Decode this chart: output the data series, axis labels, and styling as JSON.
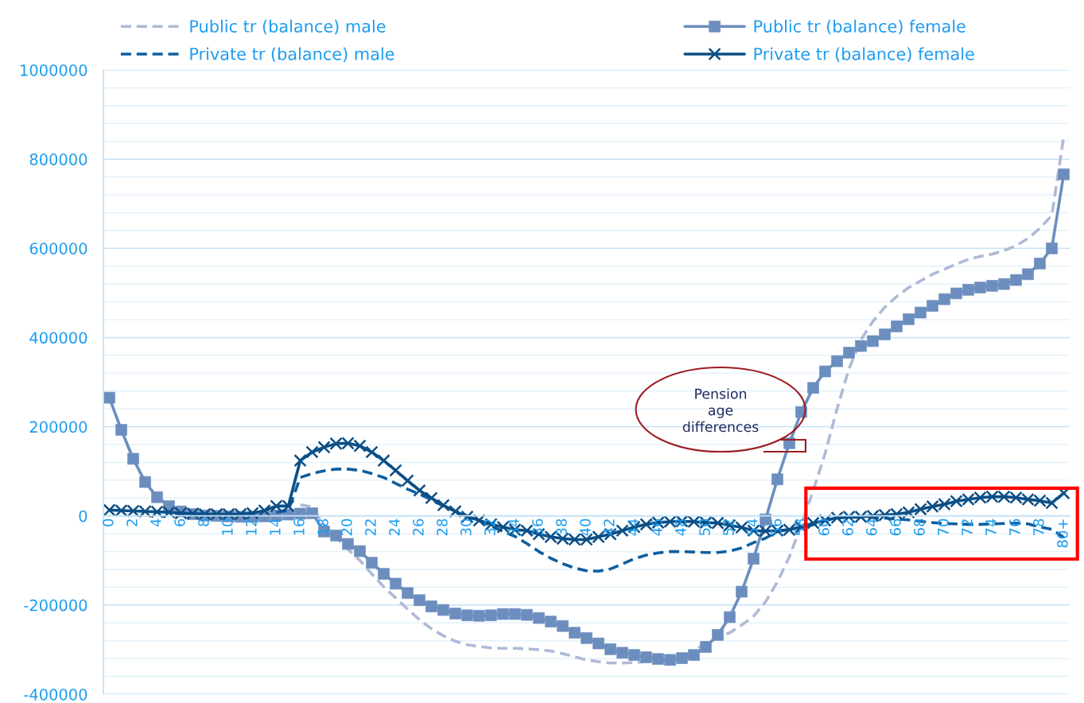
{
  "chart_data": {
    "type": "line",
    "categories": [
      "0",
      null,
      "2",
      null,
      "4",
      null,
      "6",
      null,
      "8",
      null,
      "10",
      null,
      "12",
      null,
      "14",
      null,
      "16",
      null,
      "18",
      null,
      "20",
      null,
      "22",
      null,
      "24",
      null,
      "26",
      null,
      "28",
      null,
      "30",
      null,
      "32",
      null,
      "34",
      null,
      "36",
      null,
      "38",
      null,
      "40",
      null,
      "42",
      null,
      "44",
      null,
      "46",
      null,
      "48",
      null,
      "50",
      null,
      "52",
      null,
      "54",
      null,
      "56",
      null,
      "58",
      null,
      "60",
      null,
      "62",
      null,
      "64",
      null,
      "66",
      null,
      "68",
      null,
      "70",
      null,
      "72",
      null,
      "74",
      null,
      "76",
      null,
      "78",
      null,
      "80+"
    ],
    "series": [
      {
        "name": "Public tr (balance) male",
        "color": "#aebad6",
        "marker": "none",
        "line_style": "dashed",
        "values": [
          null,
          null,
          null,
          null,
          null,
          null,
          null,
          null,
          null,
          null,
          null,
          null,
          null,
          null,
          null,
          null,
          25000,
          20000,
          -20000,
          -48000,
          -75000,
          -100000,
          -130000,
          -159000,
          -184000,
          -209000,
          -233000,
          -253000,
          -269000,
          -281000,
          -289000,
          -293000,
          -296000,
          -297000,
          -297000,
          -298000,
          -300000,
          -303000,
          -309000,
          -316000,
          -323000,
          -327000,
          -330000,
          -330000,
          -329000,
          -327000,
          -325000,
          -322000,
          -316000,
          -303000,
          -285000,
          -273000,
          -262000,
          -245000,
          -225000,
          -193000,
          -148000,
          -92000,
          -20000,
          57000,
          140000,
          240000,
          330000,
          395000,
          436000,
          468000,
          492000,
          512000,
          527000,
          542000,
          553000,
          565000,
          575000,
          582000,
          587000,
          595000,
          606000,
          622000,
          645000,
          674000,
          850000
        ]
      },
      {
        "name": "Public tr (balance) female",
        "color": "#6c8ebf",
        "marker": "square",
        "line_style": "solid",
        "values": [
          265000,
          193000,
          128000,
          76000,
          42000,
          22000,
          10000,
          4000,
          1000,
          0,
          -1000,
          -2000,
          -2000,
          -1000,
          1000,
          3000,
          5000,
          6000,
          -35000,
          -44000,
          -63000,
          -79000,
          -105000,
          -130000,
          -152000,
          -173000,
          -189000,
          -203000,
          -211000,
          -219000,
          -223000,
          -224000,
          -223000,
          -220000,
          -220000,
          -222000,
          -229000,
          -237000,
          -247000,
          -262000,
          -274000,
          -286000,
          -299000,
          -307000,
          -312000,
          -317000,
          -321000,
          -323000,
          -319000,
          -312000,
          -294000,
          -267000,
          -227000,
          -170000,
          -96000,
          -8000,
          82000,
          163000,
          233000,
          287000,
          324000,
          347000,
          366000,
          381000,
          392000,
          407000,
          425000,
          441000,
          456000,
          471000,
          486000,
          499000,
          507000,
          512000,
          516000,
          520000,
          529000,
          542000,
          566000,
          600000,
          766000
        ]
      },
      {
        "name": "Private tr (balance) male",
        "color": "#0e5e9e",
        "marker": "none",
        "line_style": "dashed",
        "values": [
          null,
          null,
          null,
          null,
          null,
          null,
          null,
          null,
          null,
          null,
          null,
          null,
          null,
          null,
          8000,
          12000,
          86000,
          95000,
          101000,
          105000,
          105000,
          102000,
          95000,
          86000,
          73000,
          60000,
          49000,
          36000,
          22000,
          11000,
          0,
          -11000,
          -22000,
          -35000,
          -46000,
          -62000,
          -80000,
          -95000,
          -107000,
          -117000,
          -123000,
          -124000,
          -119000,
          -108000,
          -96000,
          -88000,
          -83000,
          -80000,
          -80000,
          -81000,
          -82000,
          -82000,
          -79000,
          -72000,
          -60000,
          -50000,
          -35000,
          -30000,
          -25000,
          -20000,
          -10000,
          -5000,
          -3000,
          -3000,
          -4000,
          -5000,
          -7000,
          -9000,
          -12000,
          -15000,
          -17000,
          -18000,
          -19000,
          -19000,
          -18000,
          -17000,
          -16000,
          -18000,
          -25000,
          -30000,
          -48000
        ]
      },
      {
        "name": "Private tr (balance) female",
        "color": "#0b4f86",
        "marker": "cross",
        "line_style": "solid",
        "values": [
          13000,
          12000,
          11000,
          10000,
          9000,
          8000,
          6000,
          5000,
          4000,
          4000,
          4000,
          4000,
          6000,
          12000,
          22000,
          22000,
          124000,
          143000,
          154000,
          162000,
          163000,
          157000,
          143000,
          124000,
          102000,
          79000,
          57000,
          40000,
          24000,
          10000,
          -2000,
          -10000,
          -19000,
          -25000,
          -31000,
          -33000,
          -41000,
          -47000,
          -51000,
          -53000,
          -53000,
          -47000,
          -41000,
          -33000,
          -25000,
          -19000,
          -15000,
          -13000,
          -12000,
          -13000,
          -15000,
          -16000,
          -21000,
          -26000,
          -33000,
          -34000,
          -33000,
          -31000,
          -25000,
          -16000,
          -10000,
          -4000,
          -2000,
          -2000,
          0,
          2000,
          4000,
          8000,
          15000,
          21000,
          26000,
          33000,
          37000,
          41000,
          43000,
          43000,
          41000,
          37000,
          34000,
          29000,
          51000
        ]
      }
    ],
    "ylim": [
      -400000,
      1000000
    ],
    "yticks": [
      -400000,
      {
        "value": -360000,
        "label": null
      },
      {
        "value": -320000,
        "label": null
      },
      {
        "value": -280000,
        "label": null
      },
      {
        "value": -240000,
        "label": null
      },
      -200000,
      {
        "value": -160000,
        "label": null
      },
      {
        "value": -120000,
        "label": null
      },
      {
        "value": -80000,
        "label": null
      },
      {
        "value": -40000,
        "label": null
      },
      0,
      {
        "value": 40000,
        "label": null
      },
      {
        "value": 80000,
        "label": null
      },
      {
        "value": 120000,
        "label": null
      },
      {
        "value": 160000,
        "label": null
      },
      200000,
      {
        "value": 240000,
        "label": null
      },
      {
        "value": 280000,
        "label": null
      },
      {
        "value": 320000,
        "label": null
      },
      {
        "value": 360000,
        "label": null
      },
      400000,
      {
        "value": 440000,
        "label": null
      },
      {
        "value": 480000,
        "label": null
      },
      {
        "value": 520000,
        "label": null
      },
      {
        "value": 560000,
        "label": null
      },
      600000,
      {
        "value": 640000,
        "label": null
      },
      {
        "value": 680000,
        "label": null
      },
      {
        "value": 720000,
        "label": null
      },
      {
        "value": 760000,
        "label": null
      },
      800000,
      {
        "value": 840000,
        "label": null
      },
      {
        "value": 880000,
        "label": null
      },
      {
        "value": 920000,
        "label": null
      },
      {
        "value": 960000,
        "label": null
      },
      1000000
    ],
    "grid": "y",
    "legend": "top",
    "annotations": [
      "Pension\nage\ndifferences"
    ]
  }
}
